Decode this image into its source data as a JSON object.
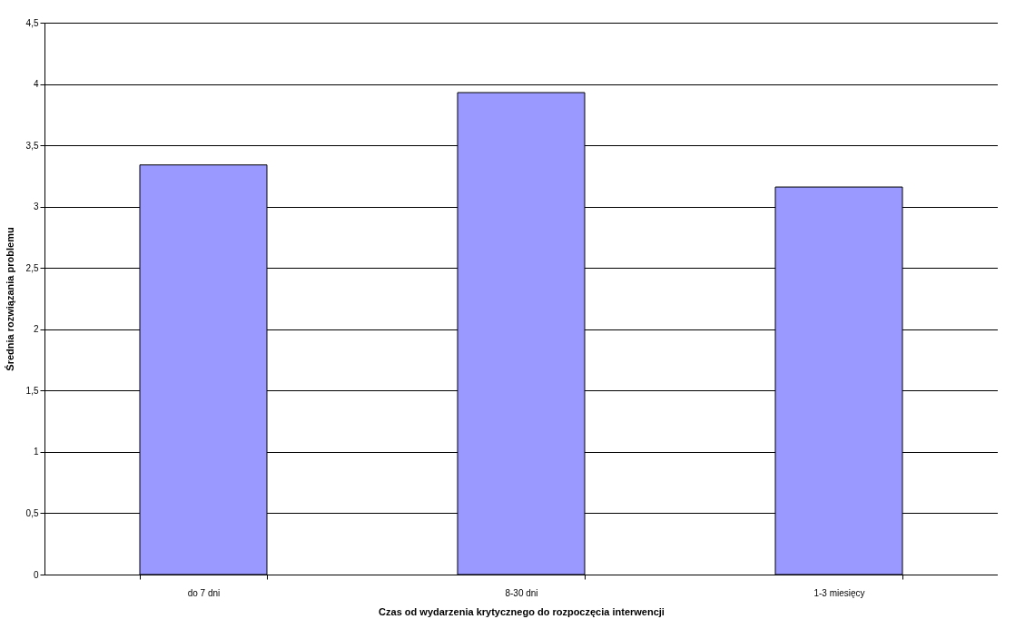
{
  "chart_data": {
    "type": "bar",
    "xlabel": "Czas od wydarzenia krytycznego do rozpoczęcia interwencji",
    "ylabel": "Średnia rozwiązania problemu",
    "categories": [
      "do 7 dni",
      "8-30 dni",
      "1-3 miesięcy"
    ],
    "values": [
      3.34,
      3.93,
      3.16
    ],
    "color": "#9999ff",
    "ylim": [
      0,
      4.5
    ],
    "yticks": [
      0,
      {
        "value": 0.5,
        "label": "0,5"
      },
      1,
      {
        "value": 1.5,
        "label": "1,5"
      },
      2,
      {
        "value": 2.5,
        "label": "2,5"
      },
      3,
      {
        "value": 3.5,
        "label": "3,5"
      },
      4,
      {
        "value": 4.5,
        "label": "4,5"
      }
    ],
    "grid": "y",
    "legend": false
  }
}
